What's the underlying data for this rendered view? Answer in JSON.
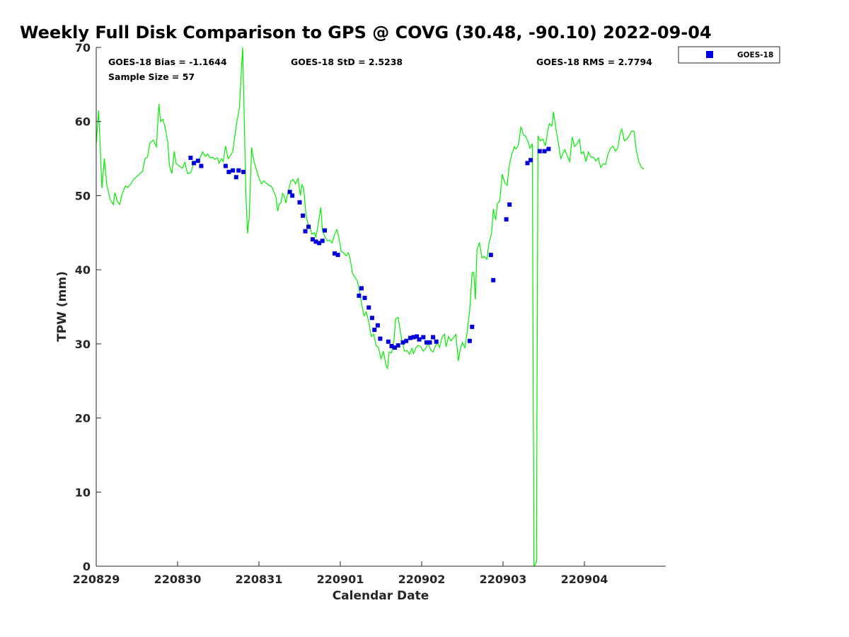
{
  "chart_data": {
    "type": "scatter",
    "title": "Weekly Full Disk Comparison to GPS @ COVG (30.48, -90.10) 2022-09-04",
    "xlabel": "Calendar Date",
    "ylabel": "TPW (mm)",
    "xlim": [
      0,
      7
    ],
    "ylim": [
      0,
      70
    ],
    "x_tick_values": [
      0,
      1,
      2,
      3,
      4,
      5,
      6
    ],
    "x_tick_labels": [
      "220829",
      "220830",
      "220831",
      "220901",
      "220902",
      "220903",
      "220904"
    ],
    "y_tick_values": [
      0,
      10,
      20,
      30,
      40,
      50,
      60,
      70
    ],
    "y_tick_labels": [
      "0",
      "10",
      "20",
      "30",
      "40",
      "50",
      "60",
      "70"
    ],
    "x_units": "days since 2022-08-29 00:00 UTC",
    "stats": {
      "bias": "GOES-18 Bias = -1.1644",
      "std": "GOES-18 StD = 2.5238",
      "rms": "GOES-18 RMS = 2.7794",
      "sample": "Sample Size = 57"
    },
    "legend": {
      "position": "top-right, outside plot",
      "entries": [
        "GOES-18"
      ]
    },
    "colors": {
      "gps": "#00ee00",
      "goes": "#0000dd",
      "axis": "#262626"
    },
    "series": [
      {
        "name": "GPS",
        "style": "line",
        "points": [
          [
            0.0,
            57.0
          ],
          [
            0.03,
            61.5
          ],
          [
            0.07,
            51.0
          ],
          [
            0.1,
            55.0
          ],
          [
            0.13,
            51.5
          ],
          [
            0.17,
            49.5
          ],
          [
            0.21,
            48.8
          ],
          [
            0.23,
            50.4
          ],
          [
            0.26,
            49.2
          ],
          [
            0.29,
            48.8
          ],
          [
            0.32,
            50.3
          ],
          [
            0.36,
            51.3
          ],
          [
            0.39,
            51.1
          ],
          [
            0.42,
            51.5
          ],
          [
            0.46,
            52.2
          ],
          [
            0.5,
            52.6
          ],
          [
            0.54,
            53.0
          ],
          [
            0.57,
            53.3
          ],
          [
            0.6,
            55.0
          ],
          [
            0.63,
            55.2
          ],
          [
            0.66,
            57.1
          ],
          [
            0.7,
            57.5
          ],
          [
            0.74,
            56.6
          ],
          [
            0.77,
            62.4
          ],
          [
            0.79,
            60.0
          ],
          [
            0.82,
            60.3
          ],
          [
            0.85,
            59.0
          ],
          [
            0.88,
            57.2
          ],
          [
            0.9,
            54.0
          ],
          [
            0.93,
            53.0
          ],
          [
            0.96,
            56.0
          ],
          [
            0.98,
            54.4
          ],
          [
            1.02,
            54.0
          ],
          [
            1.06,
            53.7
          ],
          [
            1.09,
            54.5
          ],
          [
            1.12,
            53.0
          ],
          [
            1.15,
            53.0
          ],
          [
            1.17,
            53.3
          ],
          [
            1.2,
            54.6
          ],
          [
            1.23,
            54.7
          ],
          [
            1.25,
            54.6
          ],
          [
            1.28,
            55.2
          ],
          [
            1.31,
            55.9
          ],
          [
            1.34,
            55.3
          ],
          [
            1.37,
            55.6
          ],
          [
            1.4,
            55.1
          ],
          [
            1.43,
            55.2
          ],
          [
            1.46,
            54.9
          ],
          [
            1.49,
            55.1
          ],
          [
            1.51,
            54.4
          ],
          [
            1.54,
            55.0
          ],
          [
            1.56,
            54.6
          ],
          [
            1.59,
            56.7
          ],
          [
            1.62,
            55.0
          ],
          [
            1.65,
            55.4
          ],
          [
            1.68,
            56.0
          ],
          [
            1.7,
            57.8
          ],
          [
            1.73,
            60.0
          ],
          [
            1.76,
            61.8
          ],
          [
            1.78,
            66.0
          ],
          [
            1.8,
            70.0
          ],
          [
            1.82,
            60.0
          ],
          [
            1.84,
            50.0
          ],
          [
            1.86,
            44.9
          ],
          [
            1.88,
            47.0
          ],
          [
            1.91,
            56.5
          ],
          [
            1.94,
            54.6
          ],
          [
            1.97,
            53.5
          ],
          [
            2.0,
            52.4
          ],
          [
            2.03,
            51.6
          ],
          [
            2.06,
            52.0
          ],
          [
            2.09,
            51.7
          ],
          [
            2.12,
            51.4
          ],
          [
            2.15,
            51.3
          ],
          [
            2.18,
            50.6
          ],
          [
            2.21,
            49.8
          ],
          [
            2.23,
            47.9
          ],
          [
            2.25,
            48.9
          ],
          [
            2.27,
            49.0
          ],
          [
            2.29,
            50.3
          ],
          [
            2.31,
            50.0
          ],
          [
            2.33,
            49.0
          ],
          [
            2.36,
            50.6
          ],
          [
            2.39,
            51.9
          ],
          [
            2.42,
            52.2
          ],
          [
            2.45,
            51.6
          ],
          [
            2.48,
            52.3
          ],
          [
            2.51,
            50.0
          ],
          [
            2.53,
            51.5
          ],
          [
            2.55,
            51.0
          ],
          [
            2.58,
            47.2
          ],
          [
            2.61,
            45.9
          ],
          [
            2.63,
            45.7
          ],
          [
            2.65,
            44.8
          ],
          [
            2.68,
            45.0
          ],
          [
            2.7,
            44.4
          ],
          [
            2.73,
            46.2
          ],
          [
            2.76,
            48.4
          ],
          [
            2.78,
            45.3
          ],
          [
            2.81,
            44.5
          ],
          [
            2.84,
            43.9
          ],
          [
            2.87,
            44.0
          ],
          [
            2.9,
            43.6
          ],
          [
            2.93,
            44.8
          ],
          [
            2.96,
            45.4
          ],
          [
            2.98,
            44.5
          ],
          [
            3.01,
            42.5
          ],
          [
            3.04,
            42.3
          ],
          [
            3.07,
            41.9
          ],
          [
            3.1,
            42.3
          ],
          [
            3.12,
            41.5
          ],
          [
            3.15,
            39.5
          ],
          [
            3.18,
            39.0
          ],
          [
            3.21,
            38.5
          ],
          [
            3.24,
            36.8
          ],
          [
            3.27,
            35.0
          ],
          [
            3.29,
            33.8
          ],
          [
            3.32,
            34.3
          ],
          [
            3.35,
            32.9
          ],
          [
            3.38,
            31.0
          ],
          [
            3.41,
            31.3
          ],
          [
            3.44,
            29.8
          ],
          [
            3.47,
            29.5
          ],
          [
            3.5,
            28.0
          ],
          [
            3.53,
            29.0
          ],
          [
            3.56,
            27.2
          ],
          [
            3.58,
            26.7
          ],
          [
            3.6,
            28.9
          ],
          [
            3.63,
            28.8
          ],
          [
            3.66,
            30.5
          ],
          [
            3.68,
            33.4
          ],
          [
            3.71,
            33.6
          ],
          [
            3.74,
            31.5
          ],
          [
            3.76,
            30.3
          ],
          [
            3.79,
            29.0
          ],
          [
            3.82,
            29.1
          ],
          [
            3.85,
            28.6
          ],
          [
            3.88,
            29.4
          ],
          [
            3.9,
            28.7
          ],
          [
            3.93,
            29.5
          ],
          [
            3.96,
            29.8
          ],
          [
            3.99,
            29.6
          ],
          [
            4.02,
            29.0
          ],
          [
            4.05,
            29.4
          ],
          [
            4.08,
            30.2
          ],
          [
            4.11,
            29.2
          ],
          [
            4.14,
            28.9
          ],
          [
            4.16,
            29.5
          ],
          [
            4.19,
            30.2
          ],
          [
            4.22,
            29.5
          ],
          [
            4.25,
            30.9
          ],
          [
            4.28,
            31.3
          ],
          [
            4.3,
            29.6
          ],
          [
            4.33,
            31.0
          ],
          [
            4.36,
            30.4
          ],
          [
            4.39,
            30.8
          ],
          [
            4.42,
            31.3
          ],
          [
            4.45,
            27.7
          ],
          [
            4.47,
            29.0
          ],
          [
            4.5,
            30.2
          ],
          [
            4.53,
            29.5
          ],
          [
            4.56,
            31.6
          ],
          [
            4.59,
            34.5
          ],
          [
            4.62,
            39.6
          ],
          [
            4.64,
            39.7
          ],
          [
            4.66,
            36.0
          ],
          [
            4.68,
            42.7
          ],
          [
            4.71,
            43.7
          ],
          [
            4.74,
            41.6
          ],
          [
            4.77,
            41.8
          ],
          [
            4.8,
            41.4
          ],
          [
            4.83,
            43.8
          ],
          [
            4.86,
            44.9
          ],
          [
            4.88,
            48.2
          ],
          [
            4.91,
            46.7
          ],
          [
            4.93,
            48.9
          ],
          [
            4.96,
            49.3
          ],
          [
            4.99,
            52.9
          ],
          [
            5.02,
            51.8
          ],
          [
            5.05,
            51.4
          ],
          [
            5.08,
            54.3
          ],
          [
            5.11,
            55.7
          ],
          [
            5.14,
            56.6
          ],
          [
            5.16,
            56.3
          ],
          [
            5.19,
            56.9
          ],
          [
            5.22,
            59.3
          ],
          [
            5.25,
            58.2
          ],
          [
            5.28,
            58.0
          ],
          [
            5.31,
            57.2
          ],
          [
            5.33,
            56.4
          ],
          [
            5.36,
            57.0
          ],
          [
            5.38,
            0.0
          ],
          [
            5.41,
            0.5
          ],
          [
            5.43,
            58.0
          ],
          [
            5.46,
            57.4
          ],
          [
            5.49,
            57.6
          ],
          [
            5.52,
            56.7
          ],
          [
            5.55,
            58.8
          ],
          [
            5.57,
            59.7
          ],
          [
            5.6,
            59.4
          ],
          [
            5.62,
            61.3
          ],
          [
            5.65,
            59.0
          ],
          [
            5.68,
            57.1
          ],
          [
            5.71,
            55.0
          ],
          [
            5.74,
            55.8
          ],
          [
            5.76,
            56.2
          ],
          [
            5.79,
            55.3
          ],
          [
            5.82,
            54.6
          ],
          [
            5.85,
            57.9
          ],
          [
            5.88,
            56.6
          ],
          [
            5.91,
            57.0
          ],
          [
            5.94,
            57.6
          ],
          [
            5.96,
            55.7
          ],
          [
            5.99,
            55.9
          ],
          [
            6.02,
            54.6
          ],
          [
            6.05,
            55.9
          ],
          [
            6.08,
            55.2
          ],
          [
            6.11,
            55.2
          ],
          [
            6.14,
            54.7
          ],
          [
            6.17,
            55.1
          ],
          [
            6.2,
            53.8
          ],
          [
            6.23,
            54.3
          ],
          [
            6.26,
            54.2
          ],
          [
            6.29,
            55.6
          ],
          [
            6.32,
            56.4
          ],
          [
            6.35,
            56.7
          ],
          [
            6.38,
            56.0
          ],
          [
            6.41,
            56.4
          ],
          [
            6.44,
            58.4
          ],
          [
            6.46,
            59.0
          ],
          [
            6.49,
            57.4
          ],
          [
            6.52,
            57.6
          ],
          [
            6.55,
            58.1
          ],
          [
            6.58,
            58.7
          ],
          [
            6.61,
            58.7
          ],
          [
            6.64,
            56.0
          ],
          [
            6.67,
            54.6
          ],
          [
            6.7,
            53.8
          ],
          [
            6.73,
            53.6
          ]
        ]
      },
      {
        "name": "GOES-18",
        "style": "marker",
        "points": [
          [
            1.16,
            55.1
          ],
          [
            1.2,
            54.4
          ],
          [
            1.25,
            54.7
          ],
          [
            1.29,
            54.0
          ],
          [
            1.59,
            54.0
          ],
          [
            1.63,
            53.2
          ],
          [
            1.68,
            53.4
          ],
          [
            1.72,
            52.5
          ],
          [
            1.75,
            53.4
          ],
          [
            1.81,
            53.2
          ],
          [
            2.38,
            50.5
          ],
          [
            2.41,
            50.0
          ],
          [
            2.5,
            49.1
          ],
          [
            2.54,
            47.3
          ],
          [
            2.57,
            45.2
          ],
          [
            2.61,
            45.8
          ],
          [
            2.66,
            44.1
          ],
          [
            2.7,
            43.8
          ],
          [
            2.74,
            43.6
          ],
          [
            2.78,
            43.9
          ],
          [
            2.81,
            45.3
          ],
          [
            2.93,
            42.2
          ],
          [
            2.97,
            42.0
          ],
          [
            3.23,
            36.5
          ],
          [
            3.26,
            37.5
          ],
          [
            3.3,
            36.2
          ],
          [
            3.35,
            34.9
          ],
          [
            3.39,
            33.5
          ],
          [
            3.42,
            31.9
          ],
          [
            3.46,
            32.5
          ],
          [
            3.49,
            30.7
          ],
          [
            3.59,
            30.3
          ],
          [
            3.63,
            29.7
          ],
          [
            3.67,
            29.5
          ],
          [
            3.71,
            29.8
          ],
          [
            3.77,
            30.2
          ],
          [
            3.81,
            30.4
          ],
          [
            3.86,
            30.8
          ],
          [
            3.9,
            30.9
          ],
          [
            3.94,
            31.0
          ],
          [
            3.97,
            30.6
          ],
          [
            4.02,
            30.9
          ],
          [
            4.06,
            30.2
          ],
          [
            4.1,
            30.2
          ],
          [
            4.14,
            30.9
          ],
          [
            4.18,
            30.3
          ],
          [
            4.59,
            30.4
          ],
          [
            4.62,
            32.3
          ],
          [
            4.85,
            42.0
          ],
          [
            4.88,
            38.6
          ],
          [
            5.04,
            46.8
          ],
          [
            5.08,
            48.8
          ],
          [
            5.3,
            54.4
          ],
          [
            5.34,
            54.8
          ],
          [
            5.45,
            56.0
          ],
          [
            5.51,
            56.0
          ],
          [
            5.56,
            56.3
          ]
        ]
      }
    ]
  }
}
